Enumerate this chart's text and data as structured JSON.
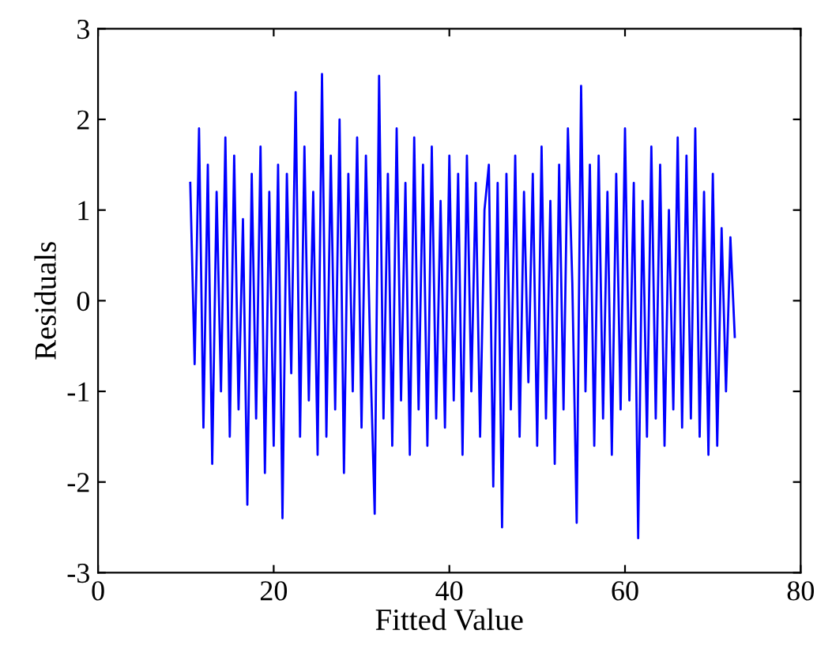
{
  "chart_data": {
    "type": "line",
    "xlabel": "Fitted Value",
    "ylabel": "Residuals",
    "xlim": [
      0,
      80
    ],
    "xticks": [
      0,
      20,
      40,
      60,
      80
    ],
    "ylim": [
      -3,
      3
    ],
    "yticks": [
      -3,
      -2,
      -1,
      0,
      1,
      2,
      3
    ],
    "grid": false,
    "marker": "none",
    "line_style": "solid",
    "x": [
      10.5,
      11,
      11.5,
      12,
      12.5,
      13,
      13.5,
      14,
      14.5,
      15,
      15.5,
      16,
      16.5,
      17,
      17.5,
      18,
      18.5,
      19,
      19.5,
      20,
      20.5,
      21,
      21.5,
      22,
      22.5,
      23,
      23.5,
      24,
      24.5,
      25,
      25.5,
      26,
      26.5,
      27,
      27.5,
      28,
      28.5,
      29,
      29.5,
      30,
      30.5,
      31,
      31.5,
      32,
      32.5,
      33,
      33.5,
      34,
      34.5,
      35,
      35.5,
      36,
      36.5,
      37,
      37.5,
      38,
      38.5,
      39,
      39.5,
      40,
      40.5,
      41,
      41.5,
      42,
      42.5,
      43,
      43.5,
      44,
      44.5,
      45,
      45.5,
      46,
      46.5,
      47,
      47.5,
      48,
      48.5,
      49,
      49.5,
      50,
      50.5,
      51,
      51.5,
      52,
      52.5,
      53,
      53.5,
      54,
      54.5,
      55,
      55.5,
      56,
      56.5,
      57,
      57.5,
      58,
      58.5,
      59,
      59.5,
      60,
      60.5,
      61,
      61.5,
      62,
      62.5,
      63,
      63.5,
      64,
      64.5,
      65,
      65.5,
      66,
      66.5,
      67,
      67.5,
      68,
      68.5,
      69,
      69.5,
      70,
      70.5,
      71,
      71.5,
      72,
      72.5
    ],
    "series": [
      {
        "color": "#0000ff",
        "values": [
          1.3,
          -0.7,
          1.9,
          -1.4,
          1.5,
          -1.8,
          1.2,
          -1.0,
          1.8,
          -1.5,
          1.6,
          -1.2,
          0.9,
          -2.25,
          1.4,
          -1.3,
          1.7,
          -1.9,
          1.2,
          -1.6,
          1.5,
          -2.4,
          1.4,
          -0.8,
          2.3,
          -1.5,
          1.7,
          -1.1,
          1.2,
          -1.7,
          2.5,
          -1.5,
          1.6,
          -1.2,
          2.0,
          -1.9,
          1.4,
          -1.0,
          1.8,
          -1.4,
          1.6,
          -0.6,
          -2.35,
          2.48,
          -1.3,
          1.4,
          -1.6,
          1.9,
          -1.1,
          1.3,
          -1.7,
          1.8,
          -1.2,
          1.5,
          -1.6,
          1.7,
          -1.3,
          1.1,
          -1.4,
          1.6,
          -1.1,
          1.4,
          -1.7,
          1.6,
          -1.0,
          1.3,
          -1.5,
          1.0,
          1.5,
          -2.05,
          1.3,
          -2.5,
          1.4,
          -1.2,
          1.6,
          -1.5,
          1.2,
          -0.9,
          1.4,
          -1.6,
          1.7,
          -1.3,
          1.1,
          -1.8,
          1.5,
          -1.2,
          1.9,
          0.2,
          -2.45,
          2.37,
          -1.0,
          1.5,
          -1.6,
          1.6,
          -1.3,
          1.2,
          -1.7,
          1.4,
          -1.2,
          1.9,
          -1.1,
          1.3,
          -2.62,
          1.1,
          -1.5,
          1.7,
          -1.3,
          1.5,
          -1.6,
          1.0,
          -1.2,
          1.8,
          -1.4,
          1.6,
          -1.3,
          1.9,
          -1.5,
          1.2,
          -1.7,
          1.4,
          -1.6,
          0.8,
          -1.0,
          0.7,
          -0.4
        ]
      }
    ]
  }
}
